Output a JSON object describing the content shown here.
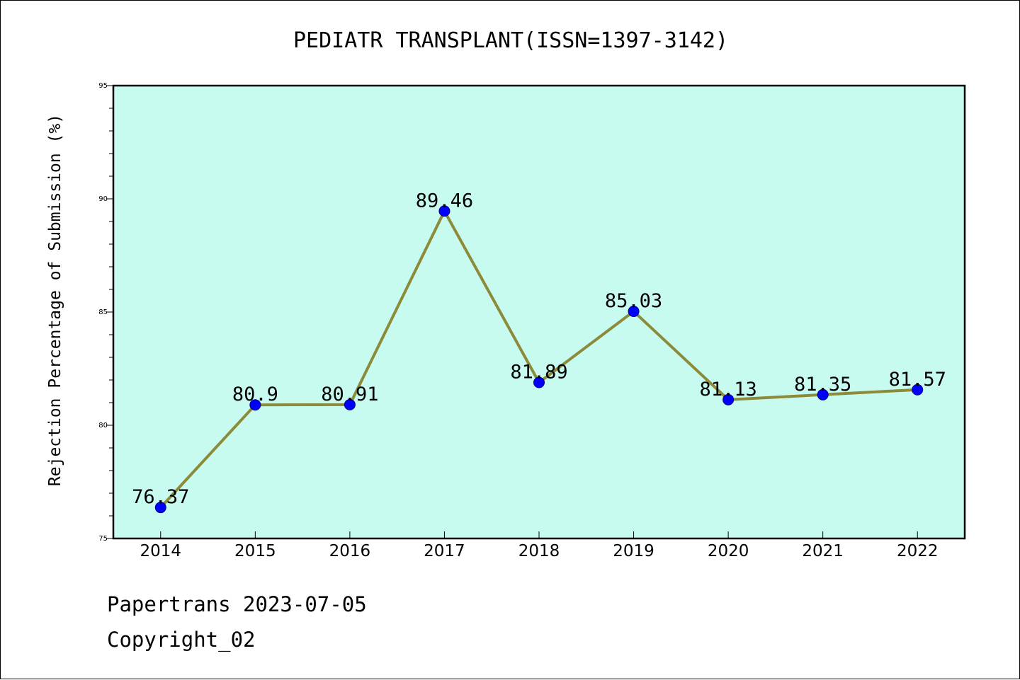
{
  "chart_data": {
    "type": "line",
    "title": "PEDIATR TRANSPLANT(ISSN=1397-3142)",
    "xlabel": "",
    "ylabel": "Rejection Percentage of Submission (%)",
    "categories": [
      "2014",
      "2015",
      "2016",
      "2017",
      "2018",
      "2019",
      "2020",
      "2021",
      "2022"
    ],
    "series": [
      {
        "values": [
          76.37,
          80.9,
          80.91,
          89.46,
          81.89,
          85.03,
          81.13,
          81.35,
          81.57
        ],
        "labels": [
          "76.37",
          "80.9",
          "80.91",
          "89.46",
          "81.89",
          "85.03",
          "81.13",
          "81.35",
          "81.57"
        ]
      }
    ],
    "ylim": [
      75,
      95
    ],
    "yticks": [
      75,
      80,
      85,
      90,
      95
    ],
    "ytick_labels": [
      "75",
      "80",
      "85",
      "90",
      "95"
    ],
    "grid": false,
    "colors": {
      "plot_background": "#c8fbef",
      "line": "#8b8b3a",
      "marker": "#0000ff"
    }
  },
  "footer": {
    "line1": "Papertrans 2023-07-05",
    "line2": "Copyright_02"
  }
}
